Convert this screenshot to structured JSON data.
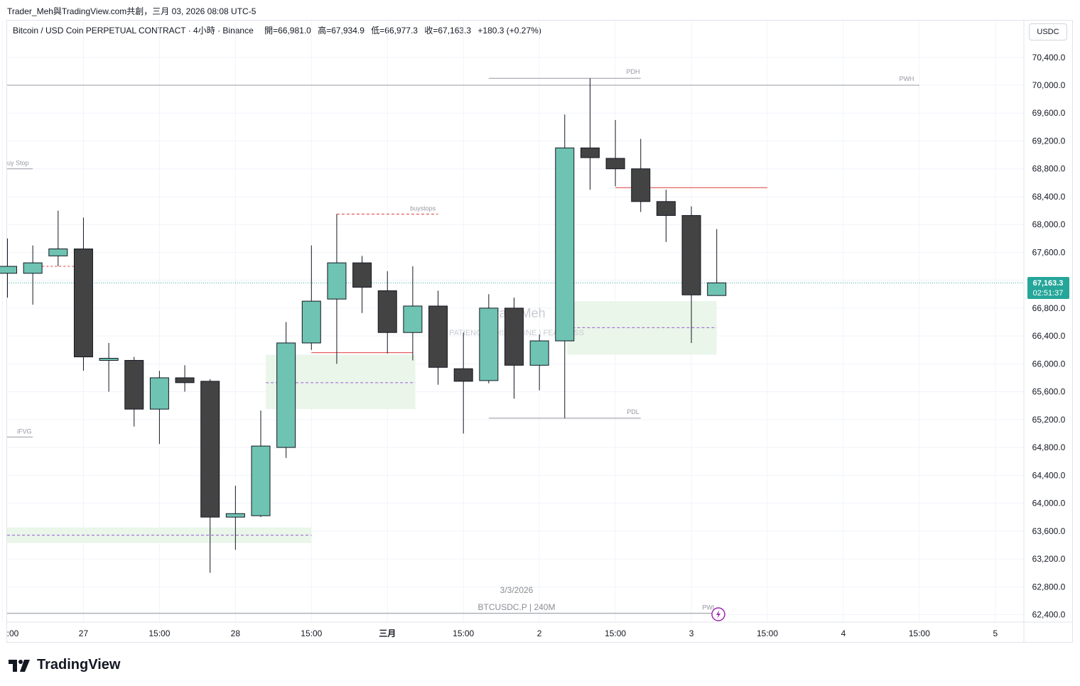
{
  "top_caption": "Trader_Meh與TradingView.com共創，三月 03, 2026 08:08 UTC-5",
  "legend": {
    "symbol": "Bitcoin / USD Coin PERPETUAL CONTRACT · 4小時 · Binance",
    "open": "開=66,981.0",
    "high": "高=67,934.9",
    "low": "低=66,977.3",
    "close": "收=67,163.3",
    "change": "+180.3 (+0.27%)"
  },
  "currency_button": "USDC",
  "price_badge": {
    "price": "67,163.3",
    "countdown": "02:51:37"
  },
  "watermark": {
    "name": "TradeMeh",
    "tagline": "PATIENCE  |  DISCIPLINE  |  FEARLESS",
    "date": "3/3/2026",
    "symbol_info": "BTCUSDC.P | 240M"
  },
  "brand": "TradingView",
  "colors": {
    "up": "#6fc3b2",
    "down": "#434343",
    "fvg": "#e9f6e9",
    "level_red": "#e03c3c",
    "purple": "#9c5cd4",
    "dotted_price": "#26a69a"
  },
  "chart_data": {
    "type": "candlestick",
    "interval": "4h",
    "ylim": [
      62200,
      70700
    ],
    "y_ticks": [
      62400,
      62800,
      63200,
      63600,
      64000,
      64400,
      64800,
      65200,
      65600,
      66000,
      66400,
      66800,
      67200,
      67600,
      68000,
      68400,
      68800,
      69200,
      69600,
      70000,
      70400
    ],
    "y_tick_labels": [
      "62,400.0",
      "62,800.0",
      "63,200.0",
      "63,600.0",
      "64,000.0",
      "64,400.0",
      "64,800.0",
      "65,200.0",
      "65,600.0",
      "66,000.0",
      "66,400.0",
      "66,800.0",
      "67,200.0",
      "67,600.0",
      "68,000.0",
      "68,400.0",
      "68,800.0",
      "69,200.0",
      "69,600.0",
      "70,000.0",
      "70,400.0"
    ],
    "x_ticks": [
      {
        "i": -0.2,
        "label": ":00"
      },
      {
        "i": 3,
        "label": "27"
      },
      {
        "i": 6,
        "label": "15:00"
      },
      {
        "i": 9,
        "label": "28"
      },
      {
        "i": 12,
        "label": "15:00"
      },
      {
        "i": 15,
        "label": "三月"
      },
      {
        "i": 18,
        "label": "15:00"
      },
      {
        "i": 21,
        "label": "2"
      },
      {
        "i": 24,
        "label": "15:00"
      },
      {
        "i": 27,
        "label": "3"
      },
      {
        "i": 30,
        "label": "15:00"
      },
      {
        "i": 33,
        "label": "4"
      },
      {
        "i": 36,
        "label": "15:00"
      },
      {
        "i": 39,
        "label": "5"
      }
    ],
    "candles": [
      {
        "o": 67300,
        "h": 67800,
        "l": 66950,
        "c": 67400
      },
      {
        "o": 67300,
        "h": 67700,
        "l": 66850,
        "c": 67450
      },
      {
        "o": 67550,
        "h": 68200,
        "l": 67400,
        "c": 67650
      },
      {
        "o": 67650,
        "h": 68100,
        "l": 65900,
        "c": 66100
      },
      {
        "o": 66050,
        "h": 66300,
        "l": 65600,
        "c": 66080
      },
      {
        "o": 66050,
        "h": 66100,
        "l": 65100,
        "c": 65350
      },
      {
        "o": 65350,
        "h": 65900,
        "l": 64850,
        "c": 65800
      },
      {
        "o": 65800,
        "h": 65980,
        "l": 65600,
        "c": 65730
      },
      {
        "o": 65750,
        "h": 65780,
        "l": 63000,
        "c": 63800
      },
      {
        "o": 63800,
        "h": 64250,
        "l": 63330,
        "c": 63850
      },
      {
        "o": 63820,
        "h": 65330,
        "l": 63800,
        "c": 64820
      },
      {
        "o": 64800,
        "h": 66600,
        "l": 64650,
        "c": 66300
      },
      {
        "o": 66300,
        "h": 67700,
        "l": 66200,
        "c": 66900
      },
      {
        "o": 66930,
        "h": 68150,
        "l": 66000,
        "c": 67450
      },
      {
        "o": 67450,
        "h": 67550,
        "l": 66730,
        "c": 67100
      },
      {
        "o": 67050,
        "h": 67330,
        "l": 66150,
        "c": 66450
      },
      {
        "o": 66450,
        "h": 67400,
        "l": 66050,
        "c": 66830
      },
      {
        "o": 66830,
        "h": 67050,
        "l": 65700,
        "c": 65950
      },
      {
        "o": 65930,
        "h": 66450,
        "l": 65000,
        "c": 65750
      },
      {
        "o": 65760,
        "h": 67000,
        "l": 65720,
        "c": 66800
      },
      {
        "o": 66800,
        "h": 66950,
        "l": 65500,
        "c": 65980
      },
      {
        "o": 65980,
        "h": 66420,
        "l": 65620,
        "c": 66330
      },
      {
        "o": 66330,
        "h": 69580,
        "l": 65220,
        "c": 69100
      },
      {
        "o": 69100,
        "h": 70100,
        "l": 68500,
        "c": 68960
      },
      {
        "o": 68950,
        "h": 69500,
        "l": 68550,
        "c": 68800
      },
      {
        "o": 68800,
        "h": 69230,
        "l": 68180,
        "c": 68330
      },
      {
        "o": 68330,
        "h": 68500,
        "l": 67750,
        "c": 68130
      },
      {
        "o": 68130,
        "h": 68260,
        "l": 66300,
        "c": 66990
      },
      {
        "o": 66981,
        "h": 67935,
        "l": 66977,
        "c": 67163
      }
    ],
    "fvg_zones": [
      {
        "i0": -0.2,
        "i1": 12,
        "top": 63650,
        "bottom": 63430,
        "mid": 63540
      },
      {
        "i0": 10.2,
        "i1": 16.1,
        "top": 66130,
        "bottom": 65350,
        "mid": 65730
      },
      {
        "i0": 22.1,
        "i1": 28,
        "top": 66900,
        "bottom": 66130,
        "mid": 66520
      }
    ],
    "levels": {
      "pwh": {
        "value": 70000,
        "label": "PWH"
      },
      "pdh": {
        "value": 70100,
        "label": "PDH"
      },
      "pdl": {
        "value": 65220,
        "label": "PDL"
      },
      "pwl": {
        "value": 62420,
        "label": "PWL"
      },
      "buystops": {
        "value": 68150,
        "label": "buystops"
      },
      "buy_stop": {
        "value": 68800,
        "label": "uy Stop"
      },
      "ifvg": {
        "value": 64950,
        "label": "iFVG"
      },
      "red_lower": {
        "value": 66160
      },
      "red_upper": {
        "value": 68530
      },
      "current": {
        "value": 67163.3
      }
    }
  }
}
